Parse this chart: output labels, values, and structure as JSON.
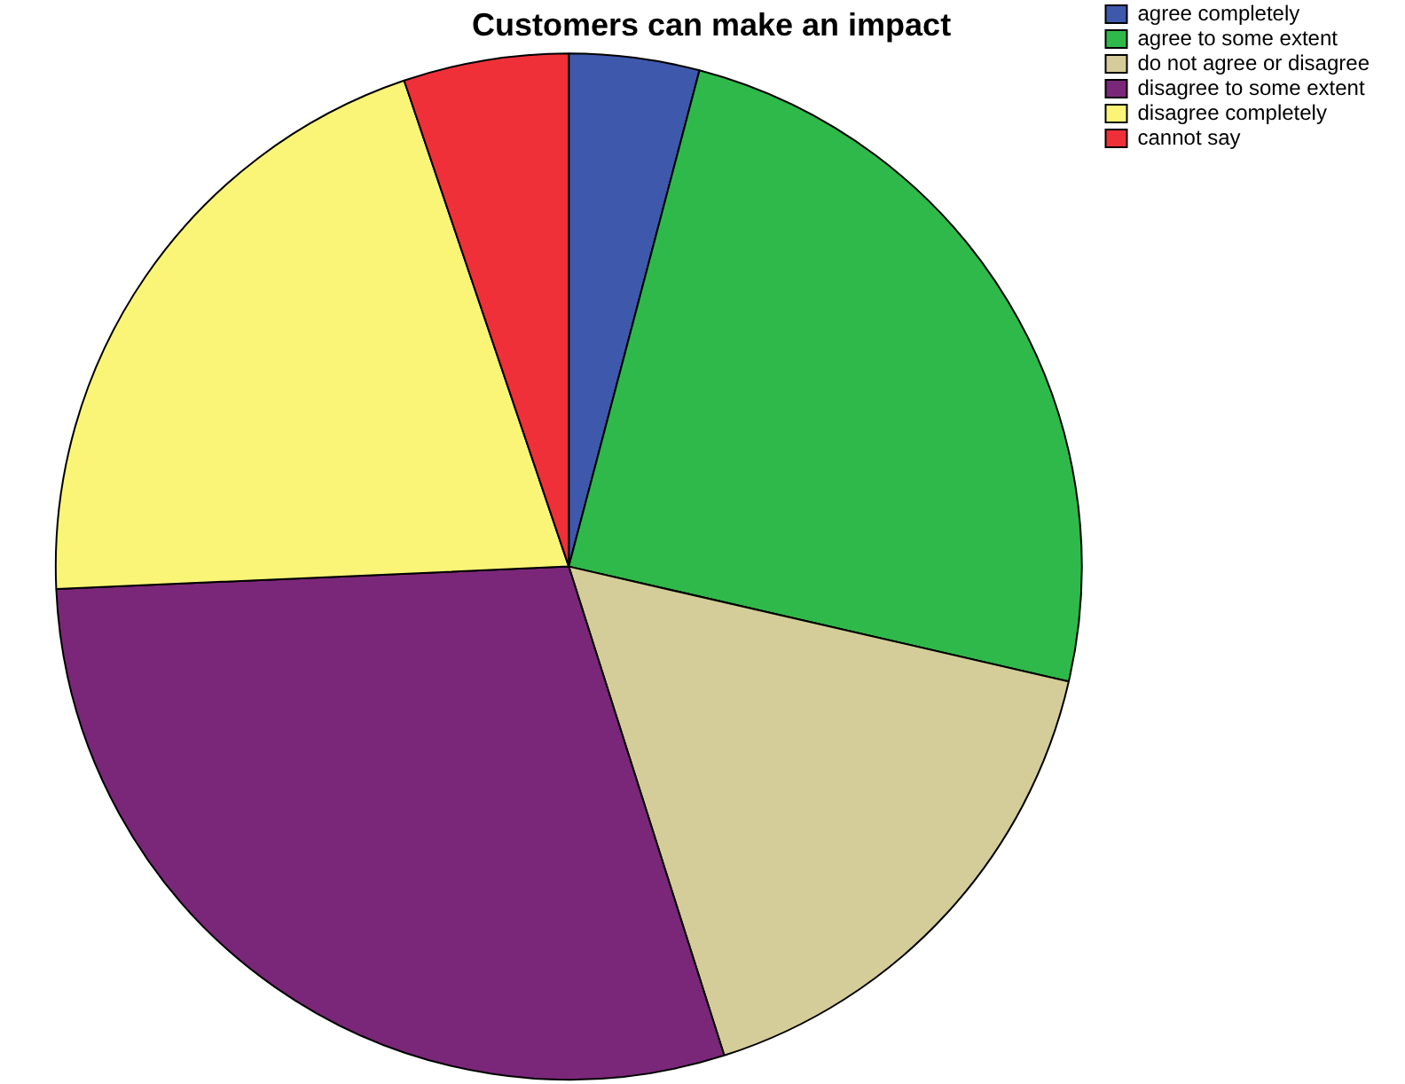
{
  "chart_data": {
    "type": "pie",
    "title": "Customers can make an impact",
    "categories": [
      "agree completely",
      "agree to some extent",
      "do not agree or disagree",
      "disagree to some extent",
      "disagree completely",
      "cannot say"
    ],
    "values": [
      4.1,
      24.5,
      16.5,
      29.2,
      20.5,
      5.2
    ],
    "colors": [
      "#3e58ac",
      "#2fb94a",
      "#d4cd99",
      "#7b2779",
      "#fbf577",
      "#ef3038"
    ],
    "legend": "top right"
  }
}
